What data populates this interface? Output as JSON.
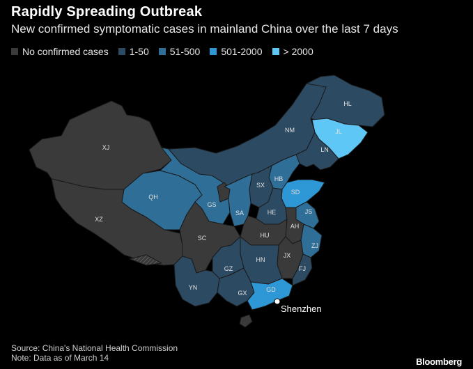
{
  "title": "Rapidly Spreading Outbreak",
  "subtitle": "New confirmed symptomatic cases in mainland China over the last 7 days",
  "legend": [
    {
      "label": "No confirmed cases",
      "color": "#3a3a3a"
    },
    {
      "label": "1-50",
      "color": "#2d4a63"
    },
    {
      "label": "51-500",
      "color": "#2f6e96"
    },
    {
      "label": "501-2000",
      "color": "#2e97d6"
    },
    {
      "label": "> 2000",
      "color": "#5fc7f5"
    }
  ],
  "regions": [
    {
      "code": "XJ",
      "category": "No confirmed cases"
    },
    {
      "code": "XZ",
      "category": "No confirmed cases"
    },
    {
      "code": "QH",
      "category": "51-500"
    },
    {
      "code": "GS",
      "category": "51-500"
    },
    {
      "code": "NM",
      "category": "1-50"
    },
    {
      "code": "HL",
      "category": "1-50"
    },
    {
      "code": "JL",
      "category": "> 2000"
    },
    {
      "code": "LN",
      "category": "1-50"
    },
    {
      "code": "HB",
      "category": "51-500"
    },
    {
      "code": "SX",
      "category": "1-50"
    },
    {
      "code": "SD",
      "category": "501-2000"
    },
    {
      "code": "HE",
      "category": "1-50"
    },
    {
      "code": "JS",
      "category": "51-500"
    },
    {
      "code": "SA",
      "category": "51-500"
    },
    {
      "code": "AH",
      "category": "No confirmed cases"
    },
    {
      "code": "SC",
      "category": "No confirmed cases"
    },
    {
      "code": "HU",
      "category": "No confirmed cases"
    },
    {
      "code": "ZJ",
      "category": "51-500"
    },
    {
      "code": "JX",
      "category": "No confirmed cases"
    },
    {
      "code": "HN",
      "category": "1-50"
    },
    {
      "code": "GZ",
      "category": "1-50"
    },
    {
      "code": "FJ",
      "category": "1-50"
    },
    {
      "code": "YN",
      "category": "1-50"
    },
    {
      "code": "GX",
      "category": "1-50"
    },
    {
      "code": "GD",
      "category": "501-2000"
    }
  ],
  "city": {
    "name": "Shenzhen"
  },
  "source": "Source: China's National Health Commission",
  "note": "Note: Data as of March 14",
  "brand": "Bloomberg"
}
